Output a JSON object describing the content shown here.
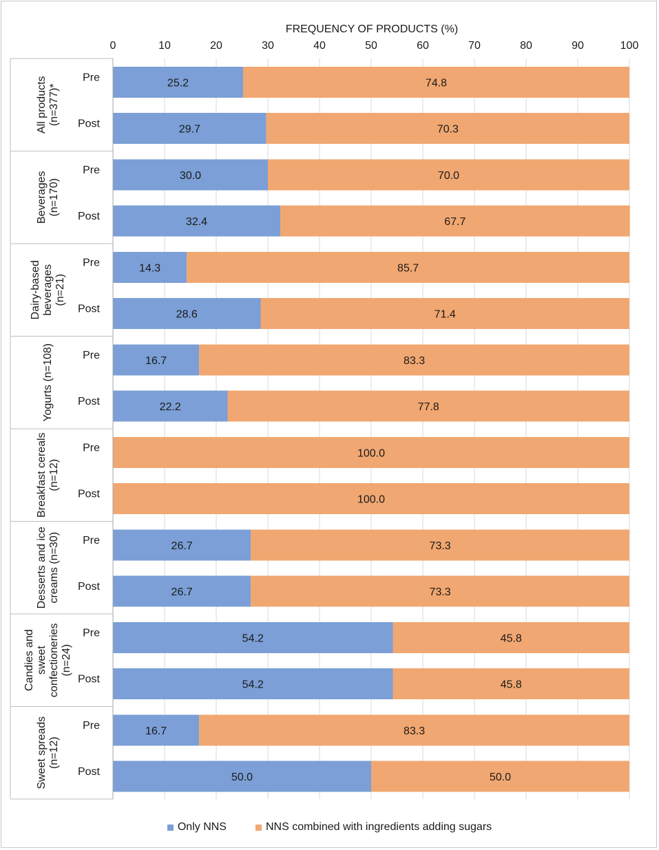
{
  "chart_data": {
    "type": "bar",
    "orientation": "horizontal",
    "stacked": true,
    "title": "FREQUENCY OF PRODUCTS (%)",
    "xlim": [
      0,
      100
    ],
    "xticks": [
      0,
      10,
      20,
      30,
      40,
      50,
      60,
      70,
      80,
      90,
      100
    ],
    "grid": true,
    "legend_position": "bottom",
    "series": [
      {
        "name": "Only NNS",
        "color": "#7b9fd6"
      },
      {
        "name": "NNS combined with ingredients adding sugars",
        "color": "#f1a771"
      }
    ],
    "groups": [
      {
        "lines": [
          "All products",
          "(n=377)*"
        ],
        "bars": [
          {
            "label": "Pre",
            "values": [
              25.2,
              74.8
            ],
            "texts": [
              "25.2",
              "74.8"
            ]
          },
          {
            "label": "Post",
            "values": [
              29.7,
              70.3
            ],
            "texts": [
              "29.7",
              "70.3"
            ]
          }
        ]
      },
      {
        "lines": [
          "Beverages",
          "(n=170)"
        ],
        "bars": [
          {
            "label": "Pre",
            "values": [
              30.0,
              70.0
            ],
            "texts": [
              "30.0",
              "70.0"
            ]
          },
          {
            "label": "Post",
            "values": [
              32.4,
              67.7
            ],
            "texts": [
              "32.4",
              "67.7"
            ]
          }
        ]
      },
      {
        "lines": [
          "Dairy-based",
          "beverages",
          "(n=21)"
        ],
        "bars": [
          {
            "label": "Pre",
            "values": [
              14.3,
              85.7
            ],
            "texts": [
              "14.3",
              "85.7"
            ]
          },
          {
            "label": "Post",
            "values": [
              28.6,
              71.4
            ],
            "texts": [
              "28.6",
              "71.4"
            ]
          }
        ]
      },
      {
        "lines": [
          "Yogurts (n=108)"
        ],
        "bars": [
          {
            "label": "Pre",
            "values": [
              16.7,
              83.3
            ],
            "texts": [
              "16.7",
              "83.3"
            ]
          },
          {
            "label": "Post",
            "values": [
              22.2,
              77.8
            ],
            "texts": [
              "22.2",
              "77.8"
            ]
          }
        ]
      },
      {
        "lines": [
          "Breakfast cereals",
          "(n=12)"
        ],
        "bars": [
          {
            "label": "Pre",
            "values": [
              0,
              100.0
            ],
            "texts": [
              "",
              "100.0"
            ]
          },
          {
            "label": "Post",
            "values": [
              0,
              100.0
            ],
            "texts": [
              "",
              "100.0"
            ]
          }
        ]
      },
      {
        "lines": [
          "Desserts and ice",
          "creams (n=30)"
        ],
        "bars": [
          {
            "label": "Pre",
            "values": [
              26.7,
              73.3
            ],
            "texts": [
              "26.7",
              "73.3"
            ]
          },
          {
            "label": "Post",
            "values": [
              26.7,
              73.3
            ],
            "texts": [
              "26.7",
              "73.3"
            ]
          }
        ]
      },
      {
        "lines": [
          "Candies and",
          "sweet",
          "confectioneries",
          "(n=24)"
        ],
        "bars": [
          {
            "label": "Pre",
            "values": [
              54.2,
              45.8
            ],
            "texts": [
              "54.2",
              "45.8"
            ]
          },
          {
            "label": "Post",
            "values": [
              54.2,
              45.8
            ],
            "texts": [
              "54.2",
              "45.8"
            ]
          }
        ]
      },
      {
        "lines": [
          "Sweet spreads",
          "(n=12)"
        ],
        "bars": [
          {
            "label": "Pre",
            "values": [
              16.7,
              83.3
            ],
            "texts": [
              "16.7",
              "83.3"
            ]
          },
          {
            "label": "Post",
            "values": [
              50.0,
              50.0
            ],
            "texts": [
              "50.0",
              "50.0"
            ]
          }
        ]
      }
    ]
  }
}
